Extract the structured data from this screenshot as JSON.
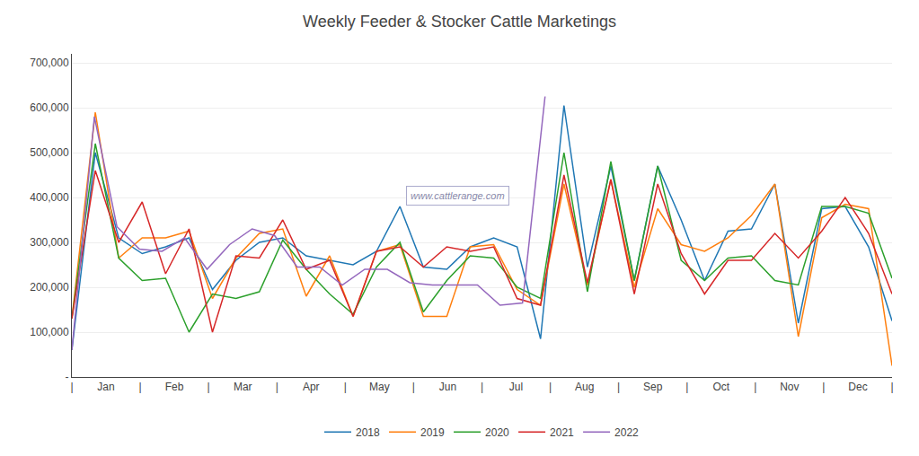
{
  "chart_data": {
    "type": "line",
    "title": "Weekly Feeder & Stocker Cattle Marketings",
    "annotations": [
      "www.cattlerange.com"
    ],
    "x": [
      0,
      1.4857142857142858,
      2.9714285714285715,
      4.457142857142857,
      5.942857142857143,
      7.428571428571429,
      8.914285714285715,
      10.4,
      11.885714285714286,
      13.371428571428572,
      14.857142857142858,
      16.34285714285714,
      17.82857142857143,
      19.314285714285713,
      20.8,
      22.285714285714285,
      23.771428571428572,
      25.257142857142856,
      26.742857142857144,
      28.228571428571428,
      29.714285714285715,
      31.2,
      32.68571428571428,
      34.17142857142857,
      35.65714285714286,
      37.142857142857146,
      38.628571428571426,
      40.114285714285714,
      41.6,
      43.08571428571429,
      44.57142857142857,
      46.05714285714286,
      47.542857142857144,
      49.02857142857143,
      50.51428571428571,
      52
    ],
    "series": [
      {
        "name": "2018",
        "values": [
          60000,
          500000,
          310000,
          275000,
          290000,
          310000,
          195000,
          260000,
          300000,
          310000,
          270000,
          260000,
          250000,
          280000,
          380000,
          245000,
          240000,
          290000,
          310000,
          290000,
          85000,
          605000,
          245000,
          470000,
          215000,
          470000,
          350000,
          215000,
          325000,
          330000,
          430000,
          120000,
          375000,
          380000,
          290000,
          125000
        ]
      },
      {
        "name": "2019",
        "values": [
          130000,
          590000,
          265000,
          310000,
          310000,
          325000,
          175000,
          265000,
          320000,
          330000,
          180000,
          270000,
          135000,
          280000,
          295000,
          135000,
          135000,
          290000,
          295000,
          195000,
          160000,
          430000,
          205000,
          440000,
          200000,
          375000,
          295000,
          280000,
          310000,
          360000,
          430000,
          90000,
          355000,
          385000,
          375000,
          25000
        ]
      },
      {
        "name": "2020",
        "values": [
          130000,
          520000,
          265000,
          215000,
          220000,
          100000,
          185000,
          175000,
          190000,
          305000,
          240000,
          185000,
          140000,
          245000,
          300000,
          145000,
          215000,
          270000,
          265000,
          200000,
          175000,
          500000,
          190000,
          480000,
          215000,
          470000,
          260000,
          215000,
          265000,
          270000,
          215000,
          205000,
          380000,
          380000,
          365000,
          220000
        ]
      },
      {
        "name": "2021",
        "values": [
          130000,
          460000,
          300000,
          390000,
          230000,
          330000,
          100000,
          270000,
          265000,
          350000,
          240000,
          260000,
          135000,
          280000,
          290000,
          245000,
          290000,
          280000,
          290000,
          175000,
          160000,
          450000,
          210000,
          440000,
          185000,
          430000,
          275000,
          185000,
          260000,
          260000,
          320000,
          265000,
          325000,
          400000,
          320000,
          185000
        ]
      },
      {
        "name": "2022",
        "x": [
          0,
          1.4285714285714286,
          2.857142857142857,
          4.285714285714286,
          5.714285714285714,
          7.142857142857143,
          8.571428571428571,
          10,
          11.428571428571429,
          12.857142857142858,
          14.285714285714286,
          15.714285714285714,
          17.142857142857142,
          18.571428571428573,
          20,
          21.428571428571427,
          22.857142857142858,
          24.285714285714285,
          25.714285714285715,
          27.142857142857142,
          28.571428571428573,
          30
        ],
        "values": [
          60000,
          580000,
          335000,
          285000,
          280000,
          310000,
          240000,
          295000,
          330000,
          315000,
          245000,
          245000,
          205000,
          240000,
          240000,
          210000,
          205000,
          205000,
          205000,
          160000,
          165000,
          625000
        ]
      }
    ],
    "xlim": [
      0,
      52
    ],
    "xticks": [
      {
        "value": 0,
        "label": "|"
      },
      {
        "value": 2.1666666666666665,
        "label": "Jan"
      },
      {
        "value": 4.333333333333333,
        "label": "|"
      },
      {
        "value": 6.5,
        "label": "Feb"
      },
      {
        "value": 8.666666666666666,
        "label": "|"
      },
      {
        "value": 10.833333333333332,
        "label": "Mar"
      },
      {
        "value": 13,
        "label": "|"
      },
      {
        "value": 15.166666666666666,
        "label": "Apr"
      },
      {
        "value": 17.333333333333332,
        "label": "|"
      },
      {
        "value": 19.5,
        "label": "May"
      },
      {
        "value": 21.666666666666668,
        "label": "|"
      },
      {
        "value": 23.833333333333336,
        "label": "Jun"
      },
      {
        "value": 26,
        "label": "|"
      },
      {
        "value": 28.166666666666664,
        "label": "Jul"
      },
      {
        "value": 30.333333333333332,
        "label": "|"
      },
      {
        "value": 32.5,
        "label": "Aug"
      },
      {
        "value": 34.666666666666664,
        "label": "|"
      },
      {
        "value": 36.83333333333333,
        "label": "Sep"
      },
      {
        "value": 39,
        "label": "|"
      },
      {
        "value": 41.166666666666664,
        "label": "Oct"
      },
      {
        "value": 43.333333333333336,
        "label": "|"
      },
      {
        "value": 45.5,
        "label": "Nov"
      },
      {
        "value": 47.666666666666664,
        "label": "|"
      },
      {
        "value": 49.83333333333333,
        "label": "Dec"
      },
      {
        "value": 52,
        "label": "|"
      }
    ],
    "ylim": [
      0,
      720000
    ],
    "yticks": [
      {
        "value": 0,
        "label": "-"
      },
      {
        "value": 100000,
        "label": "100,000"
      },
      {
        "value": 200000,
        "label": "200,000"
      },
      {
        "value": 300000,
        "label": "300,000"
      },
      {
        "value": 400000,
        "label": "400,000"
      },
      {
        "value": 500000,
        "label": "500,000"
      },
      {
        "value": 600000,
        "label": "600,000"
      },
      {
        "value": 700000,
        "label": "700,000"
      }
    ],
    "grid": true,
    "legend": "bottom"
  }
}
